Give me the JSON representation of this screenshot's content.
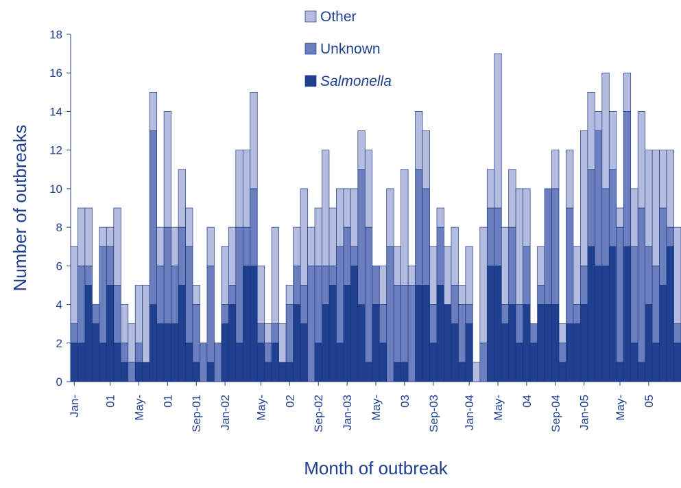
{
  "chart_data": {
    "type": "stacked_bar",
    "x_label": "Month of outbreak",
    "y_label": "Number of outbreaks",
    "categories": [
      "Jan-",
      null,
      null,
      null,
      null,
      "01",
      null,
      null,
      null,
      "May-",
      null,
      null,
      null,
      "01",
      null,
      null,
      null,
      "Sep-01",
      null,
      null,
      null,
      "Jan-02",
      null,
      null,
      null,
      null,
      "May-",
      null,
      null,
      null,
      "02",
      null,
      null,
      null,
      "Sep-02",
      null,
      null,
      null,
      "Jan-03",
      null,
      null,
      null,
      "May-",
      null,
      null,
      null,
      "03",
      null,
      null,
      null,
      "Sep-03",
      null,
      null,
      null,
      null,
      "Jan-04",
      null,
      null,
      null,
      "May-",
      null,
      null,
      null,
      "04",
      null,
      null,
      null,
      "Sep-04",
      null,
      null,
      null,
      "Jan-05",
      null,
      null,
      null,
      null,
      "May-",
      null,
      null,
      null,
      "05",
      null,
      null,
      null,
      null
    ],
    "series": [
      {
        "name": "Salmonella",
        "color": "#1f3f8f",
        "values": [
          2,
          2,
          5,
          3,
          2,
          5,
          2,
          1,
          0,
          1,
          1,
          4,
          3,
          3,
          3,
          5,
          2,
          1,
          0,
          1,
          0,
          3,
          4,
          2,
          6,
          6,
          2,
          1,
          2,
          1,
          1,
          4,
          3,
          0,
          2,
          4,
          5,
          2,
          5,
          6,
          4,
          1,
          4,
          2,
          0,
          1,
          1,
          0,
          5,
          5,
          2,
          5,
          4,
          3,
          1,
          3,
          0,
          0,
          6,
          6,
          3,
          4,
          2,
          4,
          2,
          4,
          4,
          4,
          1,
          3,
          3,
          4,
          7,
          6,
          6,
          7,
          1,
          7,
          2,
          1,
          4,
          2,
          5,
          7,
          2
        ]
      },
      {
        "name": "Unknown",
        "color": "#6b7fbf",
        "values": [
          1,
          4,
          1,
          1,
          5,
          2,
          3,
          1,
          1,
          1,
          0,
          9,
          3,
          5,
          3,
          3,
          5,
          3,
          2,
          5,
          2,
          1,
          1,
          6,
          2,
          4,
          1,
          1,
          1,
          0,
          3,
          2,
          2,
          6,
          4,
          2,
          1,
          5,
          3,
          1,
          7,
          7,
          2,
          2,
          7,
          4,
          4,
          5,
          6,
          5,
          2,
          3,
          0,
          2,
          3,
          1,
          0,
          2,
          3,
          3,
          1,
          4,
          2,
          3,
          1,
          1,
          6,
          6,
          1,
          6,
          1,
          2,
          4,
          7,
          4,
          4,
          7,
          7,
          5,
          8,
          3,
          4,
          4,
          1,
          1
        ]
      },
      {
        "name": "Other",
        "color": "#b4bde0",
        "values": [
          4,
          3,
          3,
          0,
          1,
          1,
          4,
          2,
          2,
          3,
          4,
          2,
          2,
          6,
          2,
          3,
          2,
          1,
          0,
          2,
          0,
          3,
          3,
          4,
          4,
          5,
          3,
          1,
          5,
          2,
          1,
          2,
          5,
          2,
          3,
          6,
          3,
          3,
          2,
          3,
          2,
          4,
          0,
          2,
          3,
          2,
          6,
          1,
          3,
          3,
          3,
          1,
          3,
          3,
          1,
          3,
          1,
          6,
          2,
          8,
          4,
          3,
          6,
          3,
          0,
          2,
          0,
          2,
          1,
          3,
          3,
          7,
          4,
          1,
          6,
          3,
          1,
          2,
          3,
          5,
          5,
          6,
          3,
          4,
          5
        ]
      }
    ],
    "ylim": [
      0,
      18
    ],
    "yticks": [
      0,
      2,
      4,
      6,
      8,
      10,
      12,
      14,
      16,
      18
    ]
  }
}
